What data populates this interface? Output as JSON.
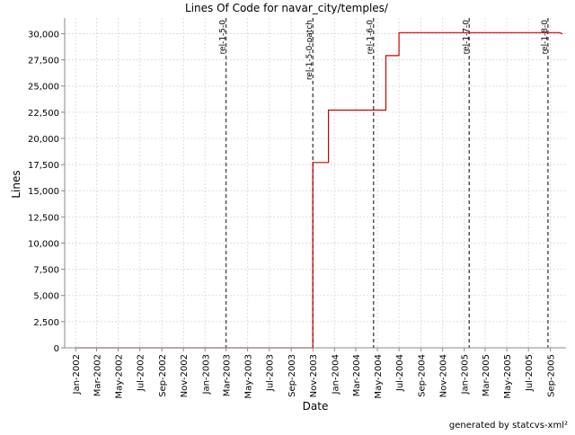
{
  "chart_data": {
    "type": "line",
    "title": "Lines Of Code for navar_city/temples/",
    "xlabel": "Date",
    "ylabel": "Lines",
    "footer": "generated by statcvs-xml²",
    "ylim": [
      0,
      31500
    ],
    "y_ticks": [
      0,
      2500,
      5000,
      7500,
      10000,
      12500,
      15000,
      17500,
      20000,
      22500,
      25000,
      27500,
      30000
    ],
    "y_tick_labels": [
      "0",
      "2,500",
      "5,000",
      "7,500",
      "10,000",
      "12,500",
      "15,000",
      "17,500",
      "20,000",
      "22,500",
      "25,000",
      "27,500",
      "30,000"
    ],
    "xlim": [
      "2001-12-01",
      "2005-10-15"
    ],
    "x_ticks": [
      "2002-01-01",
      "2002-03-01",
      "2002-05-01",
      "2002-07-01",
      "2002-09-01",
      "2002-11-01",
      "2003-01-01",
      "2003-03-01",
      "2003-05-01",
      "2003-07-01",
      "2003-09-01",
      "2003-11-01",
      "2004-01-01",
      "2004-03-01",
      "2004-05-01",
      "2004-07-01",
      "2004-09-01",
      "2004-11-01",
      "2005-01-01",
      "2005-03-01",
      "2005-05-01",
      "2005-07-01",
      "2005-09-01"
    ],
    "x_tick_labels": [
      "Jan-2002",
      "Mar-2002",
      "May-2002",
      "Jul-2002",
      "Sep-2002",
      "Nov-2002",
      "Jan-2003",
      "Mar-2003",
      "May-2003",
      "Jul-2003",
      "Sep-2003",
      "Nov-2003",
      "Jan-2004",
      "Mar-2004",
      "May-2004",
      "Jul-2004",
      "Sep-2004",
      "Nov-2004",
      "Jan-2005",
      "Mar-2005",
      "May-2005",
      "Jul-2005",
      "Sep-2005"
    ],
    "grid": true,
    "series": [
      {
        "color": "#cc0000",
        "x": [
          "2002-01-01",
          "2003-11-01",
          "2003-11-01",
          "2003-12-15",
          "2003-12-15",
          "2004-05-25",
          "2004-05-25",
          "2004-07-01",
          "2004-07-01",
          "2005-09-25",
          "2005-10-05"
        ],
        "y": [
          0,
          0,
          17700,
          17700,
          22700,
          22700,
          27900,
          27900,
          30100,
          30100,
          30000
        ]
      }
    ],
    "markers": [
      {
        "label": "rel-1-5-0",
        "date": "2003-03-01"
      },
      {
        "label": "rel-1-5-0-patch",
        "date": "2003-11-01"
      },
      {
        "label": "rel-1-6-0",
        "date": "2004-04-20"
      },
      {
        "label": "rel-1-7-0",
        "date": "2005-01-15"
      },
      {
        "label": "rel-1-8-0",
        "date": "2005-08-25"
      }
    ],
    "colors": {
      "line": "#cc0000",
      "marker": "#555555",
      "grid": "#dddddd"
    }
  }
}
